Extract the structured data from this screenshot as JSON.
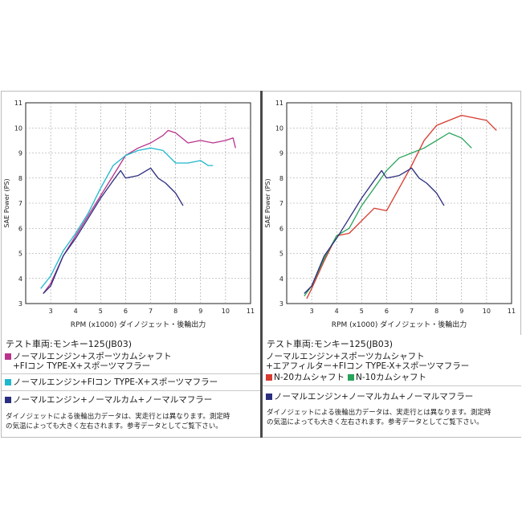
{
  "panels": [
    {
      "vehicle": "テスト車両:モンキー125(JB03)",
      "legend": [
        {
          "color": "#b8338c",
          "lines": [
            "ノーマルエンジン+スポーツカムシャフト",
            "+FIコン TYPE-X+スポーツマフラー"
          ]
        },
        {
          "color": "#1fb8cc",
          "lines": [
            "ノーマルエンジン+FIコン TYPE-X+スポーツマフラー"
          ]
        },
        {
          "color": "#2b2e7e",
          "lines": [
            "ノーマルエンジン+ノーマルカム+ノーマルマフラー"
          ]
        }
      ],
      "notes": [
        "ダイノジェットによる後輪出力データは、実走行とは異なります。測定時",
        "の気温によっても大きく左右されます。参考データとしてご覧下さい。"
      ]
    },
    {
      "vehicle": "テスト車両:モンキー125(JB03)",
      "common_lines": [
        "ノーマルエンジン+スポーツカムシャフト",
        "+エアフィルター+FIコン TYPE-X+スポーツマフラー"
      ],
      "legend_pair": [
        {
          "color": "#d83a2e",
          "label": "N-20カムシャフト"
        },
        {
          "color": "#27a35a",
          "label": "N-10カムシャフト"
        }
      ],
      "legend_last": {
        "color": "#2b2e7e",
        "label": "ノーマルエンジン+ノーマルカム+ノーマルマフラー"
      },
      "notes": [
        "ダイノジェットによる後輪出力データは、実走行とは異なります。測定時",
        "の気温によっても大きく左右されます。参考データとしてご覧下さい。"
      ]
    }
  ],
  "chart_data": [
    {
      "type": "line",
      "xlabel": "RPM (x1000) ダイノジェット・後輪出力",
      "ylabel": "SAE Power (PS)",
      "xlim": [
        2,
        11
      ],
      "ylim": [
        3,
        11
      ],
      "xticks": [
        3,
        4,
        5,
        6,
        7,
        8,
        9,
        10,
        11
      ],
      "yticks": [
        3,
        4,
        5,
        6,
        7,
        8,
        9,
        10,
        11
      ],
      "grid": true,
      "series": [
        {
          "color": "#b8338c",
          "x": [
            2.7,
            3.0,
            3.5,
            4.0,
            4.5,
            5.0,
            5.5,
            6.0,
            6.5,
            7.0,
            7.5,
            7.7,
            8.0,
            8.5,
            9.0,
            9.5,
            10.0,
            10.3,
            10.4
          ],
          "y": [
            3.4,
            3.8,
            4.9,
            5.7,
            6.5,
            7.3,
            8.1,
            8.9,
            9.2,
            9.4,
            9.7,
            9.9,
            9.8,
            9.4,
            9.5,
            9.4,
            9.5,
            9.6,
            9.2
          ]
        },
        {
          "color": "#1fb8cc",
          "x": [
            2.6,
            3.0,
            3.5,
            4.0,
            4.5,
            5.0,
            5.5,
            6.0,
            6.5,
            7.0,
            7.5,
            8.0,
            8.5,
            9.0,
            9.3,
            9.5
          ],
          "y": [
            3.6,
            4.1,
            5.1,
            5.8,
            6.6,
            7.6,
            8.5,
            8.9,
            9.1,
            9.2,
            9.1,
            8.6,
            8.6,
            8.7,
            8.5,
            8.5
          ]
        },
        {
          "color": "#2b2e7e",
          "x": [
            2.7,
            3.0,
            3.5,
            4.0,
            4.5,
            5.0,
            5.5,
            5.8,
            6.0,
            6.5,
            7.0,
            7.3,
            7.6,
            8.0,
            8.3
          ],
          "y": [
            3.4,
            3.7,
            4.9,
            5.6,
            6.4,
            7.2,
            7.9,
            8.3,
            8.0,
            8.1,
            8.4,
            8.0,
            7.8,
            7.4,
            6.9
          ]
        }
      ]
    },
    {
      "type": "line",
      "xlabel": "RPM (x1000) ダイノジェット・後輪出力",
      "ylabel": "SAE Power (PS)",
      "xlim": [
        2,
        11
      ],
      "ylim": [
        3,
        11
      ],
      "xticks": [
        3,
        4,
        5,
        6,
        7,
        8,
        9,
        10,
        11
      ],
      "yticks": [
        3,
        4,
        5,
        6,
        7,
        8,
        9,
        10,
        11
      ],
      "grid": true,
      "series": [
        {
          "color": "#d83a2e",
          "x": [
            2.8,
            3.0,
            3.5,
            4.0,
            4.5,
            5.0,
            5.5,
            6.0,
            6.5,
            7.0,
            7.5,
            8.0,
            8.5,
            9.0,
            9.5,
            10.0,
            10.4
          ],
          "y": [
            3.2,
            3.6,
            4.7,
            5.7,
            5.8,
            6.3,
            6.8,
            6.7,
            7.6,
            8.5,
            9.5,
            10.1,
            10.3,
            10.5,
            10.4,
            10.3,
            9.9
          ]
        },
        {
          "color": "#27a35a",
          "x": [
            2.7,
            3.0,
            3.5,
            4.0,
            4.5,
            5.0,
            5.5,
            6.0,
            6.5,
            7.0,
            7.5,
            8.0,
            8.5,
            9.0,
            9.4
          ],
          "y": [
            3.3,
            3.7,
            4.8,
            5.7,
            6.0,
            6.9,
            7.6,
            8.3,
            8.8,
            9.0,
            9.2,
            9.5,
            9.8,
            9.6,
            9.2
          ]
        },
        {
          "color": "#2b2e7e",
          "x": [
            2.7,
            3.0,
            3.5,
            4.0,
            4.5,
            5.0,
            5.5,
            5.8,
            6.0,
            6.5,
            7.0,
            7.3,
            7.6,
            8.0,
            8.3
          ],
          "y": [
            3.4,
            3.7,
            4.9,
            5.6,
            6.4,
            7.2,
            7.9,
            8.3,
            8.0,
            8.1,
            8.4,
            8.0,
            7.8,
            7.4,
            6.9
          ]
        }
      ]
    }
  ]
}
